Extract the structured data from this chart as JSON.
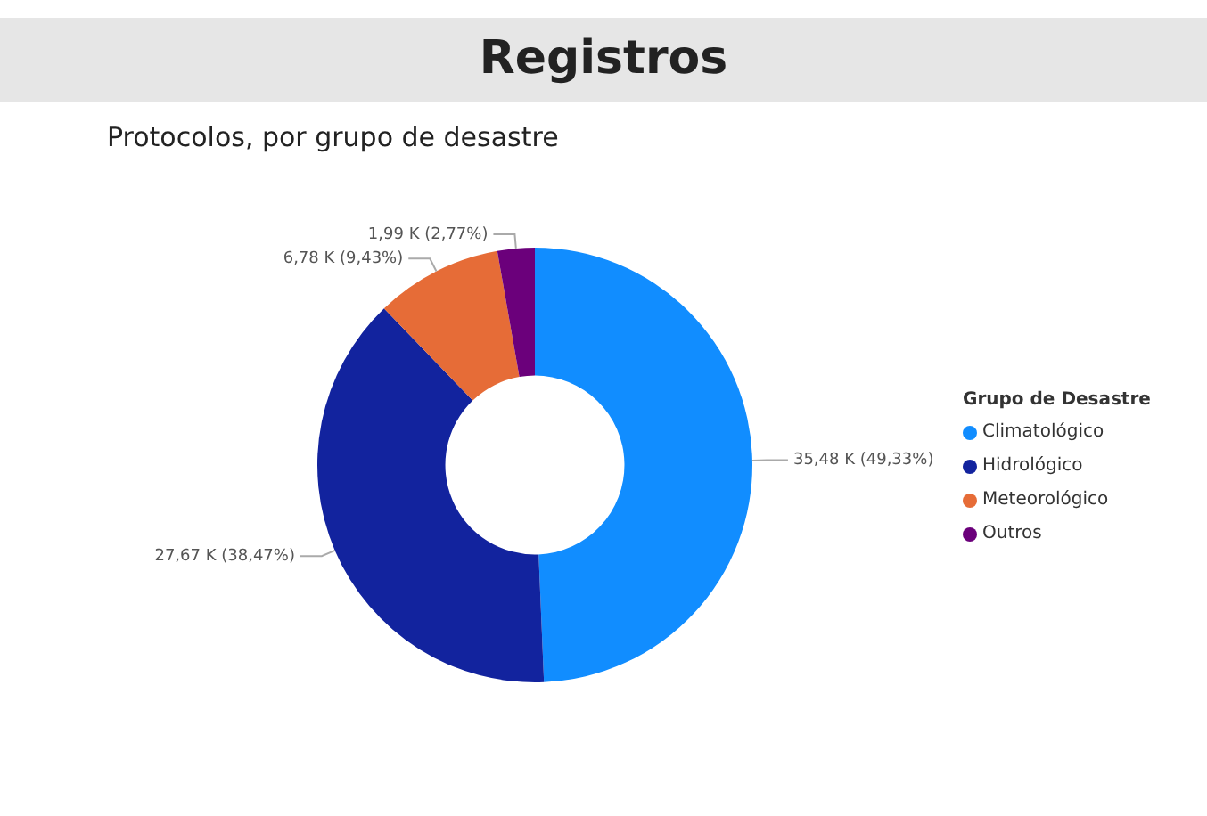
{
  "chart_data": {
    "type": "donut",
    "title": "Registros",
    "subtitle": "Protocolos, por grupo de desastre",
    "legend_title": "Grupo de Desastre",
    "categories": [
      "Climatológico",
      "Hidrológico",
      "Meteorológico",
      "Outros"
    ],
    "values": [
      35.48,
      27.67,
      6.78,
      1.99
    ],
    "value_labels": [
      "35,48 K (49,33%)",
      "27,67 K (38,47%)",
      "6,78 K (9,43%)",
      "1,99 K (2,77%)"
    ],
    "colors": [
      "#118dff",
      "#12239e",
      "#e66c37",
      "#6b007b"
    ],
    "legend": "right"
  }
}
